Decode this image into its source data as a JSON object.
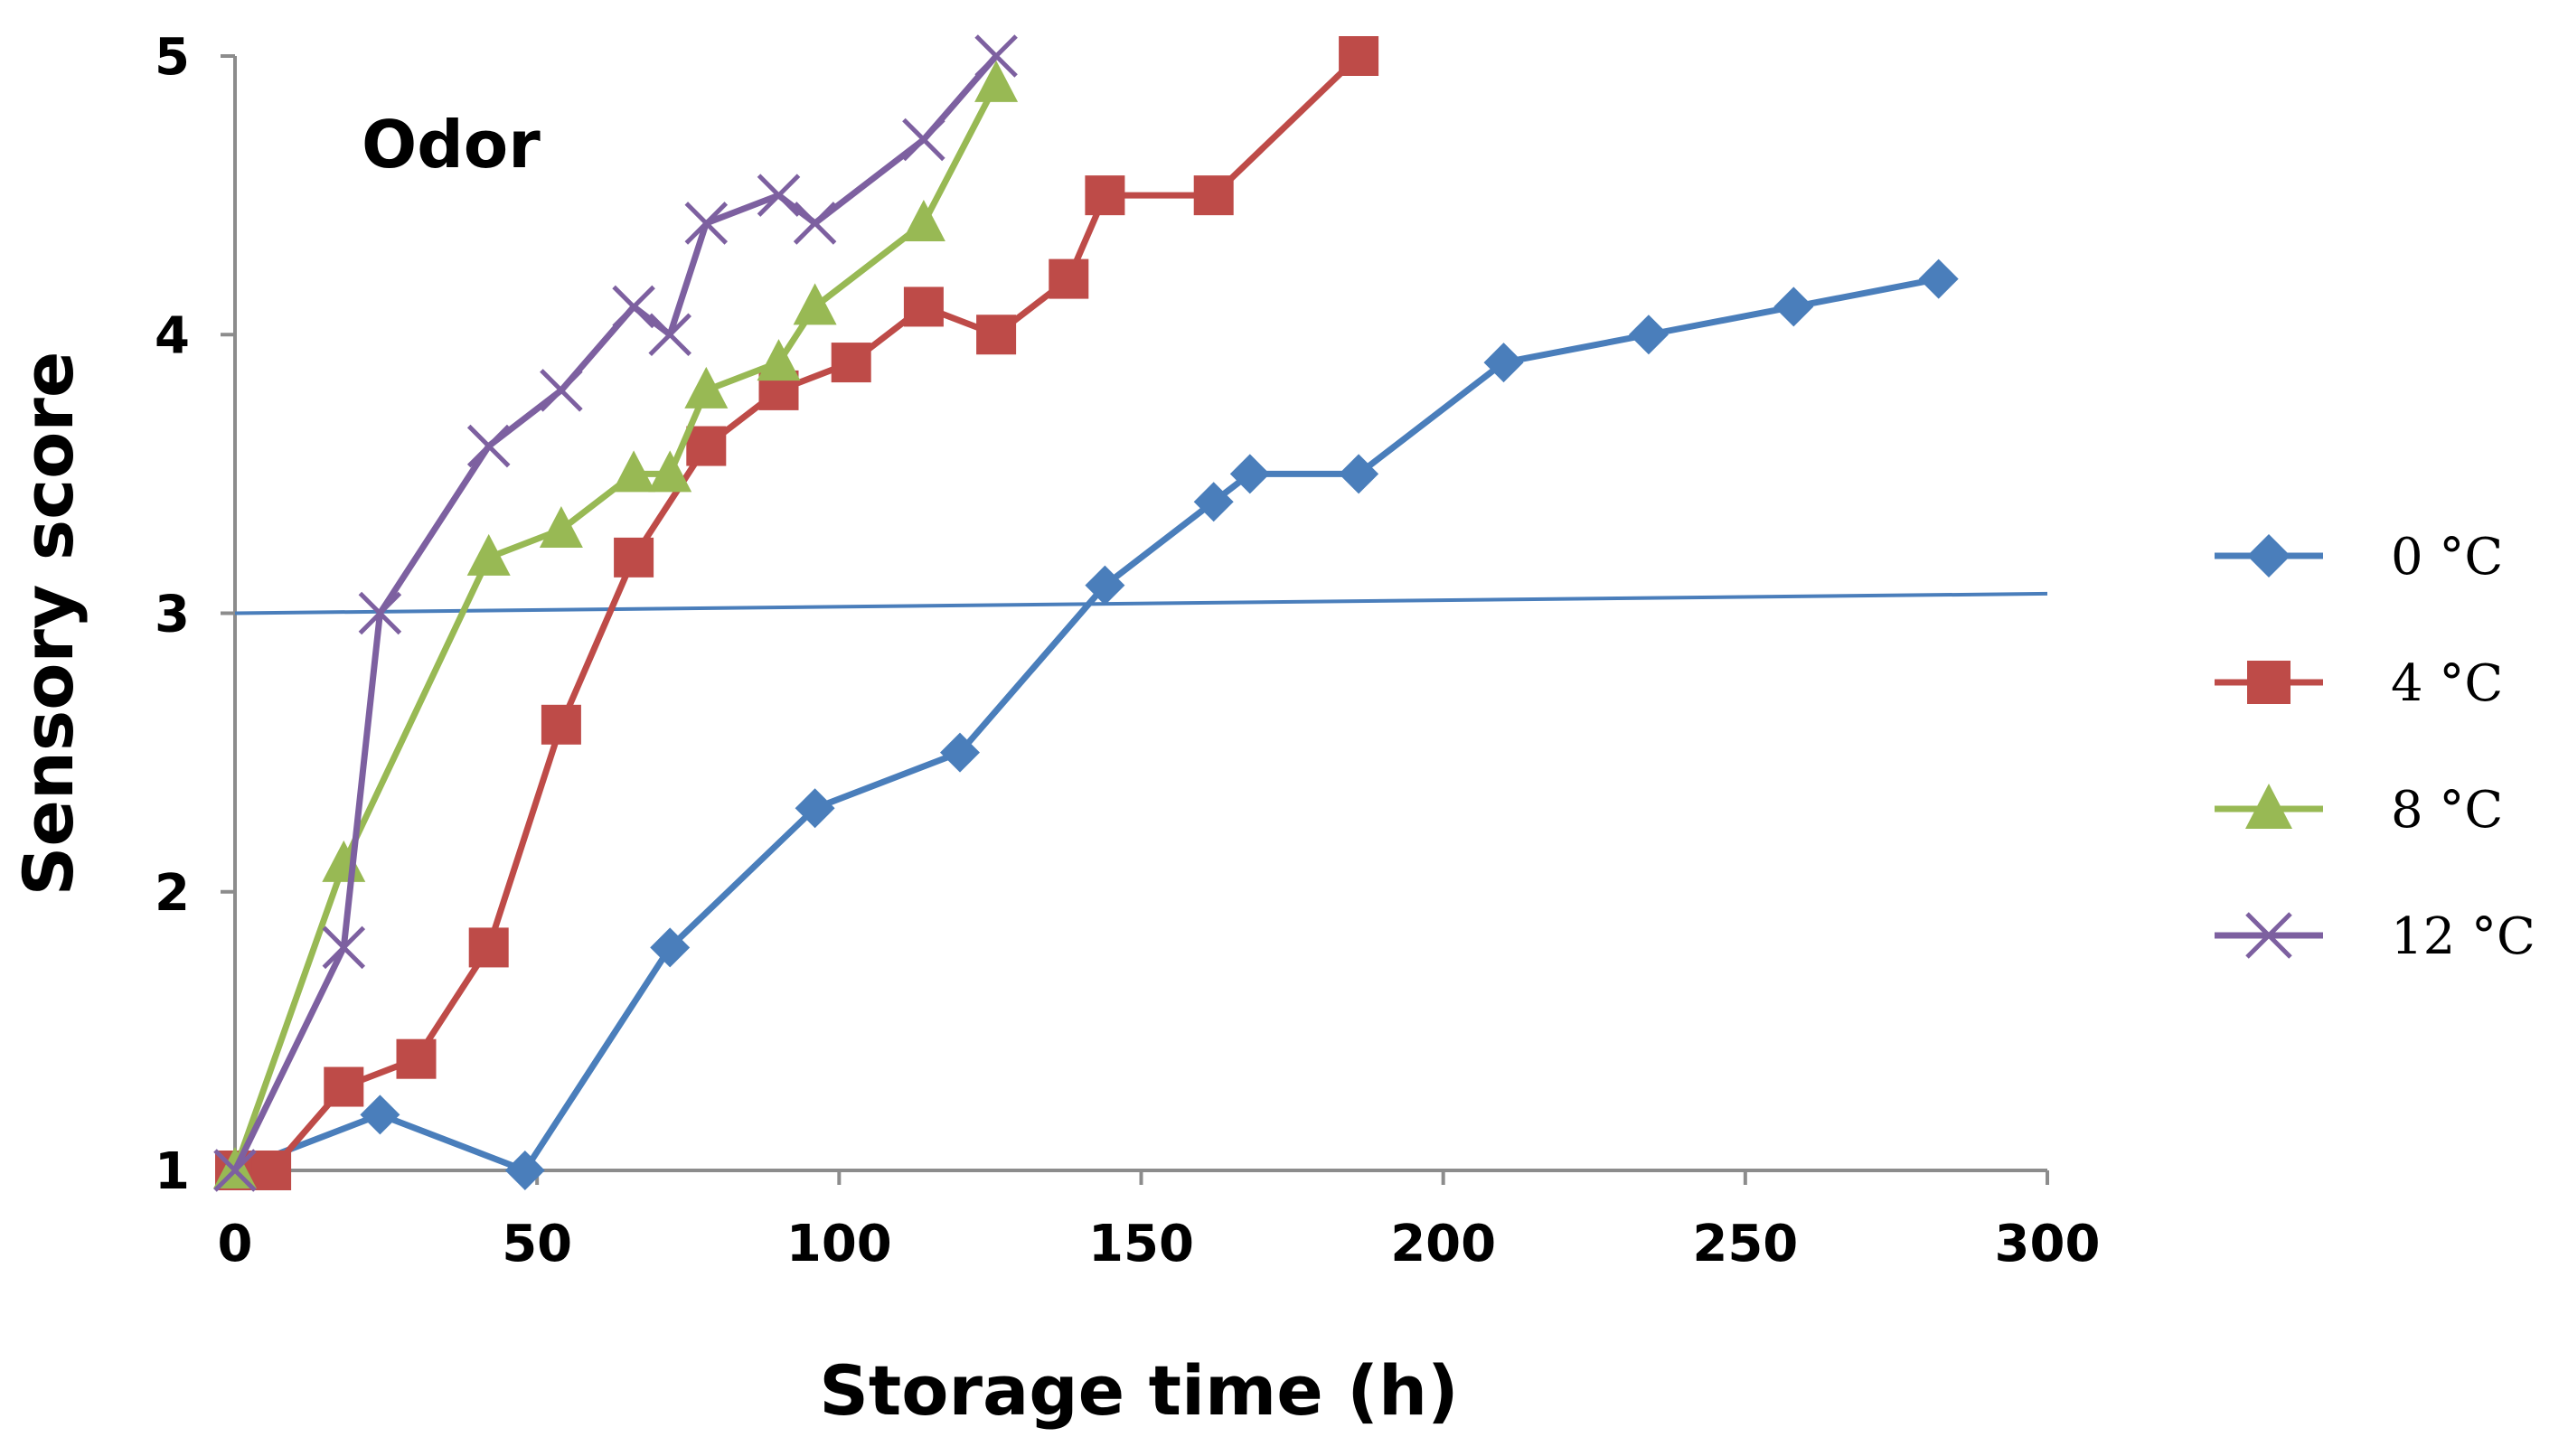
{
  "chart_data": {
    "type": "line",
    "title": "Odor",
    "xlabel": "Storage time (h)",
    "ylabel": "Sensory score",
    "xlim": [
      0,
      300
    ],
    "ylim": [
      1,
      5
    ],
    "xticks": [
      "0",
      "50",
      "100",
      "150",
      "200",
      "250",
      "300"
    ],
    "yticks": [
      "1",
      "2",
      "3",
      "4",
      "5"
    ],
    "legend_position": "right",
    "threshold_line": {
      "x": [
        0,
        300
      ],
      "y": [
        3.0,
        3.07
      ],
      "color": "#4a7ebb"
    },
    "series": [
      {
        "name": "0 °C",
        "color": "#4a7ebb",
        "marker": "diamond",
        "x": [
          0,
          24,
          48,
          72,
          96,
          120,
          144,
          162,
          168,
          186,
          210,
          234,
          258,
          282
        ],
        "y": [
          1.0,
          1.2,
          1.0,
          1.8,
          2.3,
          2.5,
          3.1,
          3.4,
          3.5,
          3.5,
          3.9,
          4.0,
          4.1,
          4.2
        ]
      },
      {
        "name": "4 °C",
        "color": "#be4b48",
        "marker": "square",
        "x": [
          0,
          6,
          18,
          30,
          42,
          54,
          66,
          78,
          90,
          102,
          114,
          126,
          138,
          144,
          162,
          186
        ],
        "y": [
          1.0,
          1.0,
          1.3,
          1.4,
          1.8,
          2.6,
          3.2,
          3.6,
          3.8,
          3.9,
          4.1,
          4.0,
          4.2,
          4.5,
          4.5,
          5.0
        ]
      },
      {
        "name": "8 °C",
        "color": "#98b954",
        "marker": "triangle",
        "x": [
          0,
          18,
          42,
          54,
          66,
          72,
          78,
          90,
          96,
          114,
          126
        ],
        "y": [
          1.0,
          2.1,
          3.2,
          3.3,
          3.5,
          3.5,
          3.8,
          3.9,
          4.1,
          4.4,
          4.9
        ]
      },
      {
        "name": "12 °C",
        "color": "#7d60a0",
        "marker": "x",
        "x": [
          0,
          18,
          24,
          42,
          54,
          66,
          72,
          78,
          90,
          96,
          114,
          126
        ],
        "y": [
          1.0,
          1.8,
          3.0,
          3.6,
          3.8,
          4.1,
          4.0,
          4.4,
          4.5,
          4.4,
          4.7,
          5.0
        ]
      }
    ]
  }
}
